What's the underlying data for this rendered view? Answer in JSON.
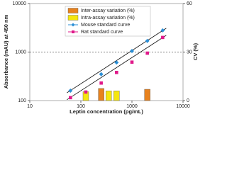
{
  "chart_data": {
    "type": "scatter",
    "x_label": "Leptin concentration (pg/mL)",
    "y_label": "Absorbance (mAU) at 450 nm",
    "y2_label": "CV (%)",
    "xscale": "log",
    "yscale": "log",
    "xlim": [
      10,
      10000
    ],
    "xticks": [
      10,
      100,
      1000,
      10000
    ],
    "ylim": [
      100,
      10000
    ],
    "yticks": [
      100,
      1000,
      10000
    ],
    "y2lim": [
      0,
      60
    ],
    "y2ticks": [
      0,
      30,
      60
    ],
    "series": [
      {
        "name": "Mouse standard curve",
        "color": "#2b8fd6",
        "marker": "diamond",
        "x": [
          62.5,
          250,
          500,
          1000,
          2000,
          4000
        ],
        "values": [
          160,
          350,
          610,
          1050,
          1700,
          2800
        ]
      },
      {
        "name": "Rat standard curve",
        "color": "#e0198a",
        "marker": "square",
        "x": [
          62.5,
          125,
          250,
          500,
          1000,
          2000,
          4000
        ],
        "values": [
          115,
          150,
          230,
          380,
          620,
          950,
          2000
        ]
      }
    ],
    "bars": [
      {
        "name": "Inter-assay variation (%)",
        "color": "#e8821e",
        "axis": "y2",
        "x": [
          250,
          350,
          2000
        ],
        "values": [
          7.5,
          null,
          7
        ]
      },
      {
        "name": "Intra-assay variation (%)",
        "color": "#f5e60f",
        "axis": "y2",
        "x": [
          125,
          350,
          500
        ],
        "values": [
          5.5,
          6,
          6
        ]
      }
    ],
    "reference_line": 1000
  }
}
